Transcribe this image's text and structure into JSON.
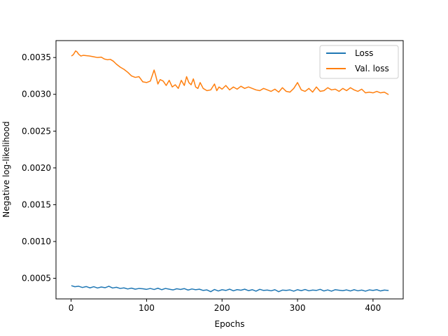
{
  "chart_data": {
    "type": "line",
    "xlabel": "Epochs",
    "ylabel": "Negative log-likelihood",
    "xlim": [
      -20,
      440
    ],
    "ylim": [
      0.00022,
      0.00373
    ],
    "x_ticks": [
      0,
      100,
      200,
      300,
      400
    ],
    "x_tick_labels": [
      "0",
      "100",
      "200",
      "300",
      "400"
    ],
    "y_ticks": [
      0.0005,
      0.001,
      0.0015,
      0.002,
      0.0025,
      0.003,
      0.0035
    ],
    "y_tick_labels": [
      "0.0005",
      "0.0010",
      "0.0015",
      "0.0020",
      "0.0025",
      "0.0030",
      "0.0035"
    ],
    "grid": false,
    "legend_position": "upper right",
    "series": [
      {
        "name": "Loss",
        "color": "#1f77b4",
        "x": [
          1,
          5,
          10,
          15,
          20,
          25,
          30,
          35,
          40,
          45,
          50,
          55,
          60,
          65,
          70,
          75,
          80,
          85,
          90,
          95,
          100,
          105,
          110,
          115,
          120,
          125,
          130,
          135,
          140,
          145,
          150,
          155,
          160,
          165,
          170,
          175,
          180,
          185,
          190,
          195,
          200,
          205,
          210,
          215,
          220,
          225,
          230,
          235,
          240,
          245,
          250,
          255,
          260,
          265,
          270,
          275,
          280,
          285,
          290,
          295,
          300,
          305,
          310,
          315,
          320,
          325,
          330,
          335,
          340,
          345,
          350,
          355,
          360,
          365,
          370,
          375,
          380,
          385,
          390,
          395,
          400,
          405,
          410,
          415,
          420
        ],
        "values": [
          0.000398,
          0.000385,
          0.000392,
          0.000375,
          0.000388,
          0.00037,
          0.000386,
          0.000368,
          0.000382,
          0.000372,
          0.000392,
          0.000368,
          0.000378,
          0.000362,
          0.00037,
          0.000355,
          0.000366,
          0.000352,
          0.000362,
          0.000358,
          0.00035,
          0.000362,
          0.000348,
          0.000365,
          0.000345,
          0.000362,
          0.000352,
          0.000342,
          0.000358,
          0.000348,
          0.00036,
          0.00034,
          0.000355,
          0.000345,
          0.000352,
          0.000335,
          0.000342,
          0.000318,
          0.000348,
          0.000328,
          0.000345,
          0.000335,
          0.000352,
          0.00033,
          0.000346,
          0.000338,
          0.000352,
          0.000332,
          0.000345,
          0.000325,
          0.00035,
          0.000335,
          0.00034,
          0.00033,
          0.000345,
          0.000318,
          0.00034,
          0.000335,
          0.000342,
          0.000325,
          0.000345,
          0.000332,
          0.000348,
          0.00033,
          0.00034,
          0.000335,
          0.00035,
          0.000328,
          0.000342,
          0.000325,
          0.000345,
          0.000338,
          0.000332,
          0.000342,
          0.000328,
          0.000345,
          0.00033,
          0.00034,
          0.000325,
          0.000342,
          0.000335,
          0.000345,
          0.000328,
          0.00034,
          0.000335
        ]
      },
      {
        "name": "Val. loss",
        "color": "#ff7f0e",
        "x": [
          1,
          3,
          6,
          8,
          10,
          13,
          16,
          20,
          25,
          30,
          35,
          40,
          44,
          48,
          52,
          56,
          60,
          65,
          70,
          75,
          80,
          85,
          90,
          95,
          100,
          105,
          110,
          112,
          115,
          118,
          122,
          126,
          130,
          134,
          138,
          142,
          146,
          150,
          153,
          156,
          159,
          162,
          165,
          168,
          171,
          175,
          180,
          185,
          190,
          193,
          196,
          200,
          205,
          210,
          215,
          220,
          225,
          230,
          235,
          240,
          245,
          250,
          255,
          260,
          265,
          270,
          275,
          280,
          285,
          290,
          295,
          300,
          305,
          310,
          315,
          320,
          325,
          330,
          335,
          340,
          345,
          350,
          355,
          360,
          365,
          370,
          375,
          380,
          385,
          390,
          395,
          400,
          405,
          410,
          415,
          420
        ],
        "values": [
          0.003525,
          0.00354,
          0.00359,
          0.003575,
          0.003545,
          0.00352,
          0.00353,
          0.003525,
          0.00352,
          0.00351,
          0.0035,
          0.003505,
          0.00348,
          0.00347,
          0.003475,
          0.00345,
          0.00341,
          0.00337,
          0.00334,
          0.0033,
          0.00325,
          0.00323,
          0.00324,
          0.00317,
          0.00316,
          0.00318,
          0.00333,
          0.00326,
          0.00314,
          0.0032,
          0.00318,
          0.00312,
          0.00319,
          0.0031,
          0.00313,
          0.00308,
          0.00319,
          0.00312,
          0.00324,
          0.00316,
          0.00313,
          0.00321,
          0.0031,
          0.00308,
          0.00316,
          0.00308,
          0.00305,
          0.00306,
          0.00314,
          0.00305,
          0.0031,
          0.00307,
          0.00312,
          0.00306,
          0.0031,
          0.00307,
          0.00311,
          0.00308,
          0.0031,
          0.00308,
          0.00306,
          0.00305,
          0.00308,
          0.00306,
          0.00304,
          0.00307,
          0.00303,
          0.00309,
          0.00304,
          0.00303,
          0.00308,
          0.00316,
          0.00306,
          0.00304,
          0.00308,
          0.00303,
          0.0031,
          0.00304,
          0.00305,
          0.00309,
          0.00306,
          0.00307,
          0.00304,
          0.00308,
          0.00305,
          0.00309,
          0.00306,
          0.00304,
          0.00307,
          0.00302,
          0.00303,
          0.00302,
          0.00304,
          0.00302,
          0.00303,
          0.003
        ]
      }
    ]
  }
}
